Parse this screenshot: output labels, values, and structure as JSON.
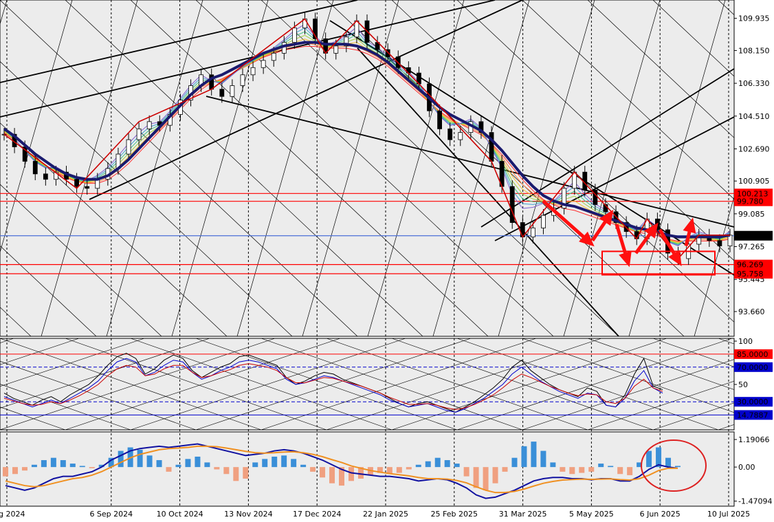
{
  "chart_data": [
    {
      "type": "candlestick-line",
      "pane": "price",
      "title": "",
      "ylim": [
        92.4,
        110.8
      ],
      "y_ticks": [
        "109.935",
        "108.150",
        "106.330",
        "104.510",
        "102.690",
        "100.905",
        "99.085",
        "97.265",
        "95.445",
        "93.660"
      ],
      "y_tick_values": [
        109.935,
        108.15,
        106.33,
        104.51,
        102.69,
        100.905,
        99.085,
        97.265,
        95.445,
        93.66
      ],
      "price_labels": [
        {
          "text": "100.213",
          "value": 100.213,
          "color": "#ff0000"
        },
        {
          "text": "99.780",
          "value": 99.78,
          "color": "#ff0000"
        },
        {
          "text": "97.869",
          "value": 97.869,
          "color": "#000000"
        },
        {
          "text": "96.269",
          "value": 96.269,
          "color": "#ff0000"
        },
        {
          "text": "95.758",
          "value": 95.758,
          "color": "#ff0000"
        }
      ],
      "horizontal_lines": [
        {
          "value": 100.213,
          "color": "#ff0000"
        },
        {
          "value": 99.78,
          "color": "#ff0000"
        },
        {
          "value": 97.869,
          "color": "#4a6fd8"
        },
        {
          "value": 96.269,
          "color": "#ff0000"
        },
        {
          "value": 95.758,
          "color": "#ff0000"
        }
      ],
      "x_labels": [
        "Aug 2024",
        "6 Sep 2024",
        "10 Oct 2024",
        "13 Nov 2024",
        "17 Dec 2024",
        "22 Jan 2025",
        "25 Feb 2025",
        "31 Mar 2025",
        "5 May 2025",
        "6 Jun 2025",
        "10 Jul 2025"
      ],
      "close_series": [
        103.5,
        102.8,
        102.0,
        101.3,
        101.0,
        101.4,
        101.0,
        100.6,
        100.5,
        101.0,
        101.6,
        102.4,
        103.2,
        103.8,
        104.2,
        104.0,
        104.6,
        105.4,
        106.2,
        106.8,
        106.0,
        105.6,
        106.2,
        106.8,
        107.2,
        107.6,
        108.0,
        108.6,
        109.4,
        109.9,
        108.8,
        108.0,
        108.4,
        108.9,
        109.8,
        108.6,
        108.2,
        107.8,
        107.2,
        106.9,
        106.3,
        104.8,
        103.8,
        103.2,
        103.6,
        104.2,
        103.6,
        102.0,
        100.6,
        98.6,
        97.8,
        98.3,
        99.0,
        99.4,
        100.5,
        101.4,
        100.4,
        99.6,
        99.2,
        98.6,
        98.1,
        97.7,
        98.8,
        98.2,
        96.9,
        96.6,
        97.4,
        97.9,
        97.6,
        97.3,
        97.9
      ],
      "ma_series": [
        103.8,
        103.4,
        102.9,
        102.4,
        102.0,
        101.6,
        101.3,
        101.1,
        101.0,
        101.0,
        101.2,
        101.6,
        102.1,
        102.7,
        103.3,
        103.9,
        104.5,
        105.1,
        105.7,
        106.2,
        106.6,
        106.8,
        107.1,
        107.4,
        107.7,
        108.0,
        108.2,
        108.4,
        108.5,
        108.6,
        108.6,
        108.5,
        108.5,
        108.5,
        108.4,
        108.2,
        107.9,
        107.5,
        107.0,
        106.5,
        106.0,
        105.5,
        105.0,
        104.6,
        104.3,
        104.0,
        103.7,
        103.2,
        102.6,
        101.9,
        101.2,
        100.6,
        100.1,
        99.8,
        99.6,
        99.5,
        99.3,
        99.1,
        98.9,
        98.7,
        98.5,
        98.3,
        98.2,
        98.1,
        97.9,
        97.8,
        97.8,
        97.8,
        97.8,
        97.8,
        97.9
      ],
      "zigzag": [
        [
          0,
          103.5
        ],
        [
          7,
          100.5
        ],
        [
          13,
          104.2
        ],
        [
          20,
          106.0
        ],
        [
          29,
          109.9
        ],
        [
          31,
          108.0
        ],
        [
          34,
          109.8
        ],
        [
          40,
          106.3
        ],
        [
          47,
          102.0
        ],
        [
          50,
          97.8
        ],
        [
          55,
          101.4
        ],
        [
          61,
          97.7
        ],
        [
          62,
          98.8
        ],
        [
          65,
          96.6
        ],
        [
          67,
          97.9
        ],
        [
          70,
          97.9
        ]
      ]
    },
    {
      "type": "line",
      "pane": "oscillator",
      "ylim": [
        0,
        100
      ],
      "y_ticks": [
        "100",
        "50"
      ],
      "y_tick_values": [
        100,
        50
      ],
      "levels": [
        {
          "text": "85.0000",
          "value": 85,
          "color": "#ff0000"
        },
        {
          "text": "70.0000",
          "value": 70,
          "color": "#0000cc"
        },
        {
          "text": "30.0000",
          "value": 30,
          "color": "#0000cc"
        },
        {
          "text": "14.7887",
          "value": 14.7887,
          "color": "#0000cc"
        }
      ],
      "series": [
        {
          "color": "#000000",
          "values": [
            40,
            34,
            30,
            26,
            32,
            36,
            30,
            38,
            44,
            50,
            60,
            72,
            82,
            86,
            80,
            62,
            68,
            78,
            84,
            80,
            66,
            58,
            64,
            70,
            74,
            82,
            84,
            80,
            76,
            72,
            58,
            50,
            54,
            60,
            64,
            62,
            56,
            52,
            48,
            44,
            40,
            34,
            28,
            24,
            28,
            30,
            26,
            22,
            18,
            24,
            30,
            38,
            46,
            56,
            70,
            78,
            66,
            58,
            50,
            44,
            40,
            36,
            46,
            42,
            26,
            24,
            38,
            62,
            80,
            48,
            44
          ]
        },
        {
          "color": "#0000cc",
          "values": [
            36,
            32,
            28,
            24,
            28,
            32,
            28,
            34,
            40,
            46,
            54,
            66,
            76,
            80,
            76,
            60,
            64,
            72,
            78,
            76,
            64,
            56,
            60,
            66,
            70,
            76,
            78,
            76,
            72,
            68,
            56,
            50,
            52,
            56,
            60,
            58,
            54,
            50,
            46,
            42,
            38,
            32,
            28,
            24,
            26,
            28,
            24,
            20,
            18,
            22,
            28,
            34,
            42,
            50,
            62,
            70,
            62,
            54,
            48,
            42,
            38,
            34,
            40,
            38,
            26,
            24,
            34,
            54,
            66,
            46,
            40
          ]
        },
        {
          "color": "#cc0000",
          "values": [
            34,
            31,
            28,
            26,
            27,
            30,
            28,
            32,
            37,
            43,
            50,
            60,
            68,
            72,
            70,
            60,
            62,
            68,
            72,
            72,
            64,
            58,
            60,
            64,
            67,
            72,
            74,
            72,
            70,
            66,
            58,
            52,
            52,
            55,
            58,
            57,
            54,
            51,
            48,
            44,
            40,
            35,
            31,
            27,
            27,
            28,
            26,
            23,
            21,
            23,
            27,
            32,
            38,
            46,
            55,
            62,
            58,
            53,
            48,
            44,
            40,
            37,
            39,
            38,
            30,
            28,
            34,
            48,
            56,
            46,
            42
          ]
        }
      ]
    },
    {
      "type": "bar-line",
      "pane": "macd",
      "ylim": [
        -1.6,
        1.4
      ],
      "y_ticks": [
        "1.19066",
        "0.00",
        "-1.47094"
      ],
      "y_tick_values": [
        1.19066,
        0,
        -1.47094
      ],
      "histogram": [
        -0.4,
        -0.3,
        -0.15,
        0.1,
        0.3,
        0.4,
        0.3,
        0.15,
        0.05,
        -0.05,
        0.1,
        0.4,
        0.7,
        0.85,
        0.75,
        0.5,
        0.3,
        -0.2,
        0.1,
        0.35,
        0.45,
        0.2,
        -0.1,
        -0.3,
        -0.6,
        -0.5,
        0.2,
        0.35,
        0.45,
        0.5,
        0.35,
        0.1,
        -0.2,
        -0.45,
        -0.7,
        -0.8,
        -0.6,
        -0.5,
        -0.35,
        -0.25,
        -0.3,
        -0.25,
        -0.1,
        0.1,
        0.25,
        0.4,
        0.3,
        0.15,
        -0.4,
        -0.9,
        -1.0,
        -0.7,
        -0.2,
        0.4,
        0.9,
        1.1,
        0.7,
        0.2,
        -0.2,
        -0.3,
        -0.25,
        -0.2,
        0.15,
        0.05,
        -0.3,
        -0.35,
        0.2,
        0.7,
        0.85,
        0.4,
        0.05
      ],
      "macd_line": [
        -0.8,
        -0.9,
        -1.0,
        -0.9,
        -0.7,
        -0.5,
        -0.4,
        -0.4,
        -0.3,
        -0.2,
        0.0,
        0.3,
        0.5,
        0.7,
        0.8,
        0.85,
        0.9,
        0.85,
        0.9,
        0.95,
        1.0,
        0.9,
        0.8,
        0.7,
        0.6,
        0.5,
        0.55,
        0.6,
        0.7,
        0.75,
        0.7,
        0.6,
        0.45,
        0.3,
        0.1,
        -0.1,
        -0.25,
        -0.3,
        -0.35,
        -0.4,
        -0.4,
        -0.45,
        -0.5,
        -0.6,
        -0.55,
        -0.5,
        -0.55,
        -0.7,
        -0.9,
        -1.2,
        -1.35,
        -1.3,
        -1.15,
        -1.0,
        -0.8,
        -0.6,
        -0.5,
        -0.45,
        -0.45,
        -0.5,
        -0.5,
        -0.55,
        -0.5,
        -0.5,
        -0.6,
        -0.6,
        -0.4,
        -0.1,
        0.1,
        0.0,
        -0.05
      ],
      "signal_line": [
        -0.6,
        -0.7,
        -0.8,
        -0.85,
        -0.8,
        -0.7,
        -0.6,
        -0.5,
        -0.45,
        -0.35,
        -0.2,
        0.0,
        0.2,
        0.4,
        0.55,
        0.65,
        0.75,
        0.8,
        0.82,
        0.85,
        0.9,
        0.9,
        0.88,
        0.82,
        0.75,
        0.68,
        0.62,
        0.6,
        0.62,
        0.65,
        0.66,
        0.62,
        0.55,
        0.45,
        0.32,
        0.2,
        0.05,
        -0.05,
        -0.15,
        -0.22,
        -0.28,
        -0.33,
        -0.38,
        -0.45,
        -0.5,
        -0.5,
        -0.52,
        -0.58,
        -0.68,
        -0.85,
        -1.0,
        -1.1,
        -1.1,
        -1.05,
        -0.95,
        -0.82,
        -0.7,
        -0.62,
        -0.56,
        -0.54,
        -0.52,
        -0.53,
        -0.52,
        -0.51,
        -0.54,
        -0.56,
        -0.5,
        -0.35,
        -0.15,
        -0.05,
        -0.05
      ]
    }
  ]
}
